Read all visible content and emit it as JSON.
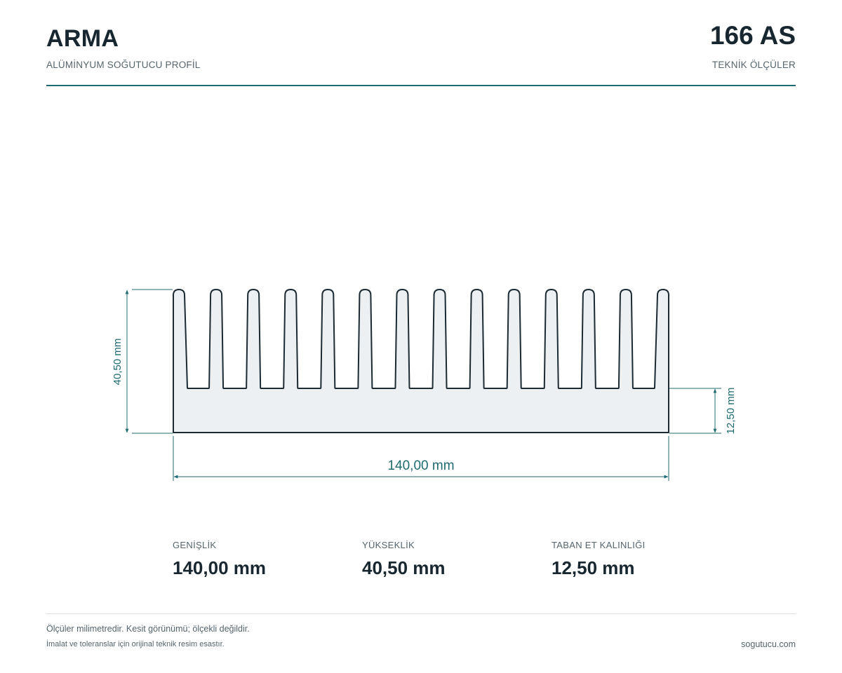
{
  "header": {
    "brand": "ARMA",
    "subtitle": "ALÜMİNYUM SOĞUTUCU PROFİL",
    "code": "166 AS",
    "section_label": "TEKNİK ÖLÇÜLER"
  },
  "drawing": {
    "profile": {
      "width_mm": 140.0,
      "height_mm": 40.5,
      "base_thickness_mm": 12.5,
      "fin_count": 14
    },
    "dimensions": {
      "width_label": "140,00 mm",
      "height_label": "40,50 mm",
      "base_label": "12,50 mm"
    },
    "colors": {
      "accent": "#1f6b6f",
      "profile_fill": "#edf0f3",
      "profile_stroke": "#1b2a33"
    }
  },
  "specs": [
    {
      "label": "GENİŞLİK",
      "value": "140,00 mm"
    },
    {
      "label": "YÜKSEKLİK",
      "value": "40,50 mm"
    },
    {
      "label": "TABAN ET KALINLIĞI",
      "value": "12,50 mm"
    }
  ],
  "footer": {
    "note1": "Ölçüler milimetredir. Kesit görünümü; ölçekli değildir.",
    "note2": "İmalat ve toleranslar için orijinal teknik resim esastır.",
    "website": "sogutucu.com"
  }
}
